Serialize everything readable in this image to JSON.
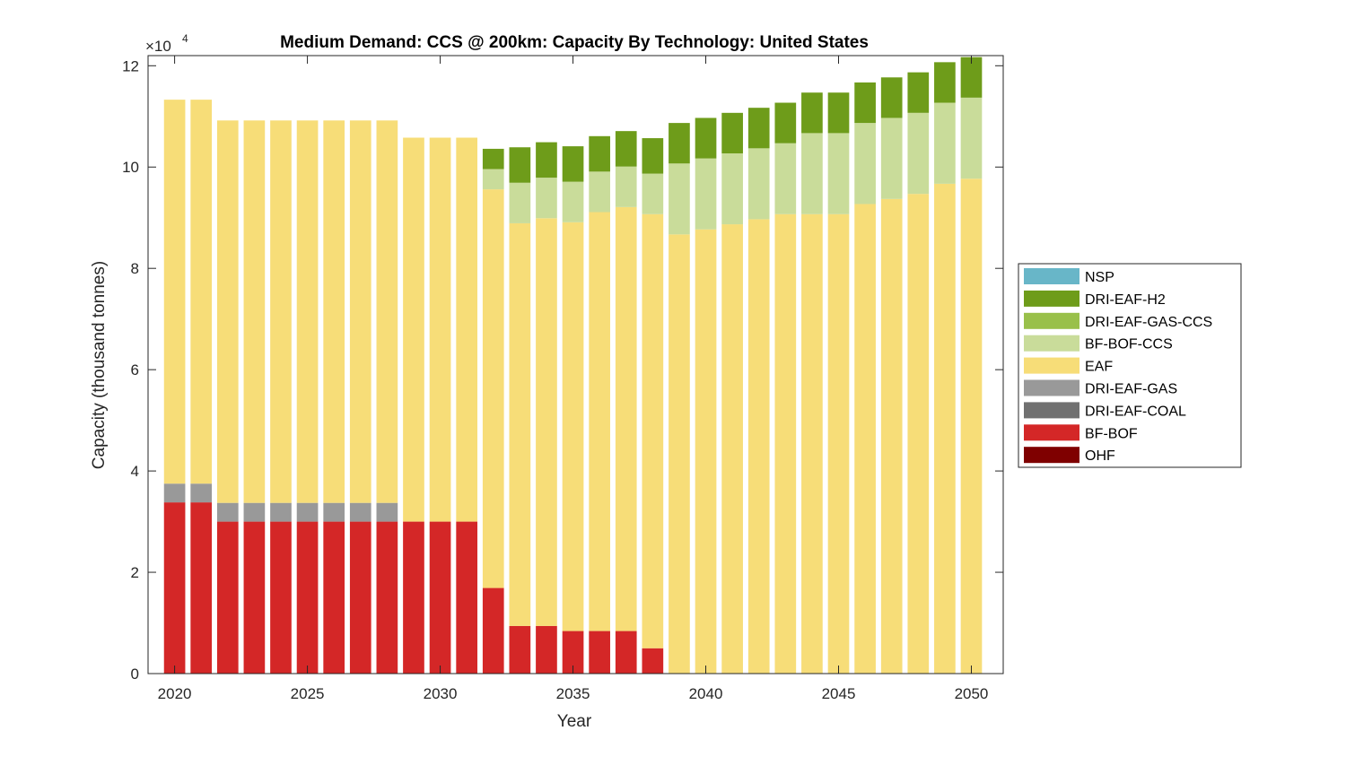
{
  "chart_data": {
    "type": "bar",
    "stacked": true,
    "title": "Medium Demand: CCS @ 200km: Capacity By Technology: United States",
    "xlabel": "Year",
    "ylabel": "Capacity (thousand tonnes)",
    "y_exponent_label": "×10",
    "y_exponent": "4",
    "xlim": [
      2019,
      2051.2
    ],
    "ylim": [
      0,
      122000
    ],
    "x_ticks": [
      2020,
      2025,
      2030,
      2035,
      2040,
      2045,
      2050
    ],
    "x_tick_labels": [
      "2020",
      "2025",
      "2030",
      "2035",
      "2040",
      "2045",
      "2050"
    ],
    "y_ticks": [
      0,
      20000,
      40000,
      60000,
      80000,
      100000,
      120000
    ],
    "y_tick_labels": [
      "0",
      "2",
      "4",
      "6",
      "8",
      "10",
      "12"
    ],
    "grid": false,
    "legend_position": "outside-right",
    "categories": [
      2020,
      2021,
      2022,
      2023,
      2024,
      2025,
      2026,
      2027,
      2028,
      2029,
      2030,
      2031,
      2032,
      2033,
      2034,
      2035,
      2036,
      2037,
      2038,
      2039,
      2040,
      2041,
      2042,
      2043,
      2044,
      2045,
      2046,
      2047,
      2048,
      2049,
      2050
    ],
    "series": [
      {
        "name": "OHF",
        "color": "#7f0000",
        "values": [
          0,
          0,
          0,
          0,
          0,
          0,
          0,
          0,
          0,
          0,
          0,
          0,
          0,
          0,
          0,
          0,
          0,
          0,
          0,
          0,
          0,
          0,
          0,
          0,
          0,
          0,
          0,
          0,
          0,
          0,
          0
        ]
      },
      {
        "name": "BF-BOF",
        "color": "#d42727",
        "values": [
          33800,
          33800,
          30000,
          30000,
          30000,
          30000,
          30000,
          30000,
          30000,
          30000,
          30000,
          30000,
          16900,
          9400,
          9400,
          8400,
          8400,
          8400,
          5000,
          0,
          0,
          0,
          0,
          0,
          0,
          0,
          0,
          0,
          0,
          0,
          0
        ]
      },
      {
        "name": "DRI-EAF-COAL",
        "color": "#707070",
        "values": [
          0,
          0,
          0,
          0,
          0,
          0,
          0,
          0,
          0,
          0,
          0,
          0,
          0,
          0,
          0,
          0,
          0,
          0,
          0,
          0,
          0,
          0,
          0,
          0,
          0,
          0,
          0,
          0,
          0,
          0,
          0
        ]
      },
      {
        "name": "DRI-EAF-GAS",
        "color": "#999999",
        "values": [
          3700,
          3700,
          3700,
          3700,
          3700,
          3700,
          3700,
          3700,
          3700,
          0,
          0,
          0,
          0,
          0,
          0,
          0,
          0,
          0,
          0,
          0,
          0,
          0,
          0,
          0,
          0,
          0,
          0,
          0,
          0,
          0,
          0
        ]
      },
      {
        "name": "EAF",
        "color": "#f7dd78",
        "values": [
          75800,
          75800,
          75500,
          75500,
          75500,
          75500,
          75500,
          75500,
          75500,
          75800,
          75800,
          75800,
          78700,
          79500,
          80500,
          80700,
          82700,
          83700,
          85700,
          86700,
          87700,
          88700,
          89700,
          90700,
          90700,
          90700,
          92700,
          93700,
          94700,
          96700,
          97700
        ]
      },
      {
        "name": "BF-BOF-CCS",
        "color": "#c9dc9a",
        "values": [
          0,
          0,
          0,
          0,
          0,
          0,
          0,
          0,
          0,
          0,
          0,
          0,
          4000,
          8000,
          8000,
          8000,
          8000,
          8000,
          8000,
          14000,
          14000,
          14000,
          14000,
          14000,
          16000,
          16000,
          16000,
          16000,
          16000,
          16000,
          16000
        ]
      },
      {
        "name": "DRI-EAF-GAS-CCS",
        "color": "#99c04a",
        "values": [
          0,
          0,
          0,
          0,
          0,
          0,
          0,
          0,
          0,
          0,
          0,
          0,
          0,
          0,
          0,
          0,
          0,
          0,
          0,
          0,
          0,
          0,
          0,
          0,
          0,
          0,
          0,
          0,
          0,
          0,
          0
        ]
      },
      {
        "name": "DRI-EAF-H2",
        "color": "#6e9c1a",
        "values": [
          0,
          0,
          0,
          0,
          0,
          0,
          0,
          0,
          0,
          0,
          0,
          0,
          4000,
          7000,
          7000,
          7000,
          7000,
          7000,
          7000,
          8000,
          8000,
          8000,
          8000,
          8000,
          8000,
          8000,
          8000,
          8000,
          8000,
          8000,
          8000
        ]
      },
      {
        "name": "NSP",
        "color": "#68b6c8",
        "values": [
          0,
          0,
          0,
          0,
          0,
          0,
          0,
          0,
          0,
          0,
          0,
          0,
          0,
          0,
          0,
          0,
          0,
          0,
          0,
          0,
          0,
          0,
          0,
          0,
          0,
          0,
          0,
          0,
          0,
          0,
          0
        ]
      }
    ],
    "legend_order": [
      "NSP",
      "DRI-EAF-H2",
      "DRI-EAF-GAS-CCS",
      "BF-BOF-CCS",
      "EAF",
      "DRI-EAF-GAS",
      "DRI-EAF-COAL",
      "BF-BOF",
      "OHF"
    ]
  }
}
